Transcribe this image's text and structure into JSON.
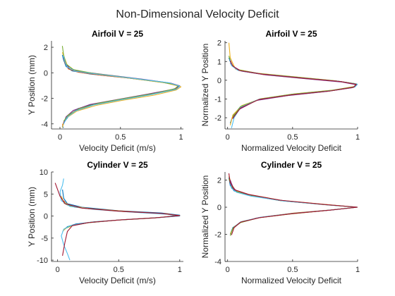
{
  "figure": {
    "suptitle": "Non-Dimensional Velocity Deficit"
  },
  "colors": [
    "#0072BD",
    "#D95319",
    "#EDB120",
    "#7E2F8E",
    "#77AC30",
    "#4DBEEE",
    "#A2142F"
  ],
  "chart_data": [
    {
      "type": "line",
      "title": "Airfoil V = 25",
      "xlabel": "Velocity Deficit (m/s)",
      "ylabel": "Y Position (mm)",
      "xlim": [
        -0.07,
        1.02
      ],
      "ylim": [
        -4.4,
        2.5
      ],
      "xticks": [
        0,
        0.5,
        1
      ],
      "xtick_labels": [
        "0",
        "0.5",
        "1"
      ],
      "yticks": [
        -4,
        -2,
        0,
        2
      ],
      "ytick_labels": [
        "-4",
        "-2",
        "0",
        "2"
      ],
      "series": [
        {
          "color": "#0072BD",
          "x": [
            0.02,
            0.03,
            0.05,
            0.1,
            0.25,
            0.55,
            0.85,
            0.98,
            0.97,
            0.8,
            0.55,
            0.3,
            0.15,
            0.08,
            0.04,
            0.02,
            0.03
          ],
          "y": [
            1.4,
            1.0,
            0.5,
            0.15,
            -0.1,
            -0.4,
            -0.75,
            -1.0,
            -1.2,
            -1.6,
            -2.0,
            -2.4,
            -2.8,
            -3.3,
            -3.8,
            -4.2,
            -4.3
          ]
        },
        {
          "color": "#D95319",
          "x": [
            0.03,
            0.04,
            0.07,
            0.15,
            0.35,
            0.65,
            0.9,
            0.99,
            0.95,
            0.75,
            0.5,
            0.28,
            0.12,
            0.05,
            0.02
          ],
          "y": [
            1.2,
            0.8,
            0.3,
            0.05,
            -0.2,
            -0.5,
            -0.8,
            -1.05,
            -1.3,
            -1.7,
            -2.1,
            -2.5,
            -3.0,
            -3.5,
            -4.1
          ]
        },
        {
          "color": "#EDB120",
          "x": [
            0.02,
            0.04,
            0.06,
            0.12,
            0.3,
            0.6,
            0.88,
            1.0,
            0.96,
            0.78,
            0.52,
            0.3,
            0.14,
            0.06,
            0.03,
            0.02
          ],
          "y": [
            1.6,
            1.1,
            0.6,
            0.2,
            -0.1,
            -0.45,
            -0.8,
            -1.1,
            -1.35,
            -1.75,
            -2.15,
            -2.55,
            -3.0,
            -3.5,
            -3.9,
            -4.3
          ]
        },
        {
          "color": "#7E2F8E",
          "x": [
            0.04,
            0.05,
            0.08,
            0.16,
            0.38,
            0.68,
            0.92,
            0.99,
            0.94,
            0.72,
            0.48,
            0.25,
            0.11,
            0.05,
            0.03
          ],
          "y": [
            1.0,
            0.7,
            0.35,
            0.1,
            -0.15,
            -0.5,
            -0.82,
            -1.02,
            -1.28,
            -1.68,
            -2.08,
            -2.48,
            -2.95,
            -3.45,
            -3.95
          ]
        },
        {
          "color": "#77AC30",
          "x": [
            0.02,
            0.03,
            0.05,
            0.11,
            0.28,
            0.58,
            0.86,
            0.98,
            0.95,
            0.78,
            0.54,
            0.32,
            0.16,
            0.07,
            0.03
          ],
          "y": [
            2.1,
            1.4,
            0.7,
            0.25,
            -0.05,
            -0.4,
            -0.75,
            -1.0,
            -1.25,
            -1.62,
            -2.0,
            -2.38,
            -2.8,
            -3.3,
            -3.8
          ]
        },
        {
          "color": "#4DBEEE",
          "x": [
            0.03,
            0.04,
            0.06,
            0.13,
            0.32,
            0.62,
            0.9,
            0.99,
            0.96,
            0.76,
            0.5,
            0.28,
            0.13,
            0.06,
            0.03
          ],
          "y": [
            1.3,
            0.9,
            0.45,
            0.12,
            -0.12,
            -0.45,
            -0.78,
            -1.05,
            -1.3,
            -1.7,
            -2.12,
            -2.52,
            -2.98,
            -3.48,
            -4.0
          ]
        }
      ]
    },
    {
      "type": "line",
      "title": "Airfoil V = 25",
      "xlabel": "Normalized Velocity Deficit",
      "ylabel": "Normalized Y Position",
      "xlim": [
        -0.02,
        1.0
      ],
      "ylim": [
        -2.6,
        2.1
      ],
      "xticks": [
        0,
        0.5,
        1
      ],
      "xtick_labels": [
        "0",
        "0.5",
        "1"
      ],
      "yticks": [
        -2,
        -1,
        0,
        1,
        2
      ],
      "ytick_labels": [
        "-2",
        "-1",
        "0",
        "1",
        "2"
      ],
      "series": [
        {
          "color": "#0072BD",
          "x": [
            0.01,
            0.03,
            0.08,
            0.25,
            0.55,
            0.85,
            0.99,
            0.98,
            0.8,
            0.5,
            0.25,
            0.1,
            0.04,
            0.02
          ],
          "y": [
            1.2,
            0.8,
            0.55,
            0.35,
            0.15,
            -0.05,
            -0.2,
            -0.35,
            -0.55,
            -0.75,
            -1.0,
            -1.4,
            -1.9,
            -2.3
          ]
        },
        {
          "color": "#D95319",
          "x": [
            0.02,
            0.04,
            0.1,
            0.28,
            0.58,
            0.88,
            1.0,
            0.97,
            0.78,
            0.48,
            0.23,
            0.09,
            0.03
          ],
          "y": [
            1.0,
            0.75,
            0.5,
            0.3,
            0.1,
            -0.08,
            -0.22,
            -0.38,
            -0.58,
            -0.8,
            -1.05,
            -1.5,
            -2.1
          ]
        },
        {
          "color": "#EDB120",
          "x": [
            0.01,
            0.02,
            0.06,
            0.22,
            0.52,
            0.82,
            0.98,
            0.98,
            0.82,
            0.52,
            0.26,
            0.11,
            0.04,
            0.02
          ],
          "y": [
            2.0,
            1.2,
            0.6,
            0.38,
            0.18,
            -0.02,
            -0.18,
            -0.33,
            -0.52,
            -0.72,
            -0.98,
            -1.35,
            -1.85,
            -2.4
          ]
        },
        {
          "color": "#7E2F8E",
          "x": [
            0.02,
            0.05,
            0.11,
            0.3,
            0.6,
            0.88,
            0.99,
            0.96,
            0.76,
            0.46,
            0.22,
            0.09,
            0.04
          ],
          "y": [
            0.9,
            0.7,
            0.48,
            0.28,
            0.08,
            -0.1,
            -0.24,
            -0.4,
            -0.6,
            -0.82,
            -1.08,
            -1.55,
            -2.05
          ]
        },
        {
          "color": "#77AC30",
          "x": [
            0.01,
            0.03,
            0.07,
            0.24,
            0.54,
            0.84,
            0.99,
            0.98,
            0.8,
            0.5,
            0.25,
            0.1,
            0.04
          ],
          "y": [
            1.3,
            0.85,
            0.57,
            0.36,
            0.16,
            -0.04,
            -0.19,
            -0.34,
            -0.54,
            -0.74,
            -1.0,
            -1.4,
            -1.95
          ]
        },
        {
          "color": "#4DBEEE",
          "x": [
            0.02,
            0.03,
            0.08,
            0.26,
            0.56,
            0.86,
            1.0,
            0.98,
            0.8,
            0.5,
            0.24,
            0.1,
            0.05,
            0.03
          ],
          "y": [
            1.1,
            0.78,
            0.53,
            0.33,
            0.13,
            -0.06,
            -0.21,
            -0.36,
            -0.56,
            -0.77,
            -1.02,
            -1.45,
            -2.0,
            -2.55
          ]
        },
        {
          "color": "#A2142F",
          "x": [
            0.02,
            0.04,
            0.09,
            0.27,
            0.57,
            0.87,
            0.99,
            0.97,
            0.79,
            0.49,
            0.24,
            0.1,
            0.04
          ],
          "y": [
            1.05,
            0.76,
            0.52,
            0.32,
            0.12,
            -0.07,
            -0.22,
            -0.37,
            -0.57,
            -0.78,
            -1.03,
            -1.48,
            -2.02
          ]
        }
      ]
    },
    {
      "type": "line",
      "title": "Cylinder V = 25",
      "xlabel": "Velocity Deficit (m/s)",
      "ylabel": "Y Position (mm)",
      "xlim": [
        -0.05,
        1.03
      ],
      "ylim": [
        -10.3,
        10.0
      ],
      "xticks": [
        0,
        0.5,
        1
      ],
      "xtick_labels": [
        "0",
        "0.5",
        "1"
      ],
      "yticks": [
        -10,
        -5,
        0,
        5,
        10
      ],
      "ytick_labels": [
        "-10",
        "-5",
        "0",
        "5",
        "10"
      ],
      "series": [
        {
          "color": "#0072BD",
          "x": [
            0.04,
            0.05,
            0.08,
            0.2,
            0.5,
            0.85,
            1.0,
            0.85,
            0.55,
            0.3,
            0.15,
            0.08,
            0.05
          ],
          "y": [
            6.0,
            4.0,
            2.8,
            2.0,
            1.2,
            0.7,
            0.2,
            -0.3,
            -0.8,
            -1.3,
            -1.8,
            -2.4,
            -3.2
          ]
        },
        {
          "color": "#D95319",
          "x": [
            0.05,
            0.07,
            0.12,
            0.3,
            0.6,
            0.9,
            0.99,
            0.8,
            0.5,
            0.25,
            0.12,
            0.06
          ],
          "y": [
            3.5,
            2.8,
            2.2,
            1.6,
            1.0,
            0.5,
            0.0,
            -0.4,
            -0.9,
            -1.5,
            -2.1,
            -2.8
          ]
        },
        {
          "color": "#EDB120",
          "x": [
            0.03,
            0.05,
            0.1,
            0.25,
            0.55,
            0.88,
            1.0,
            0.82,
            0.52,
            0.28,
            0.14,
            0.07,
            0.04
          ],
          "y": [
            4.5,
            3.2,
            2.4,
            1.7,
            1.0,
            0.5,
            0.1,
            -0.35,
            -0.85,
            -1.4,
            -2.0,
            -2.7,
            -3.5
          ]
        },
        {
          "color": "#77AC30",
          "x": [
            0.05,
            0.08,
            0.14,
            0.32,
            0.62,
            0.9,
            0.98,
            0.78,
            0.48,
            0.24,
            0.11,
            0.05
          ],
          "y": [
            3.0,
            2.5,
            2.0,
            1.5,
            0.9,
            0.45,
            0.0,
            -0.45,
            -0.95,
            -1.55,
            -2.2,
            -3.0
          ]
        },
        {
          "color": "#4DBEEE",
          "x": [
            0.05,
            0.04,
            0.02,
            0.03,
            0.1,
            0.3,
            0.6,
            0.9,
            1.0,
            0.8,
            0.5,
            0.25,
            0.1,
            0.05,
            0.03,
            0.05,
            0.08,
            0.1
          ],
          "y": [
            8.5,
            7.0,
            5.5,
            3.5,
            2.2,
            1.5,
            0.9,
            0.4,
            0.0,
            -0.4,
            -0.9,
            -1.5,
            -2.2,
            -3.0,
            -4.5,
            -6.5,
            -8.5,
            -10.0
          ]
        },
        {
          "color": "#A2142F",
          "x": [
            -0.02,
            0.02,
            0.06,
            0.2,
            0.5,
            0.85,
            1.0,
            0.8,
            0.5,
            0.25,
            0.12,
            0.08,
            0.06,
            0.04
          ],
          "y": [
            7.5,
            4.5,
            2.8,
            1.8,
            1.1,
            0.6,
            0.1,
            -0.4,
            -0.9,
            -1.5,
            -2.2,
            -3.5,
            -6.0,
            -9.0
          ]
        }
      ]
    },
    {
      "type": "line",
      "title": "Cylinder V = 25",
      "xlabel": "Normalized Velocity Deficit",
      "ylabel": "Normalized Y Position",
      "xlim": [
        -0.02,
        1.0
      ],
      "ylim": [
        -4.0,
        2.6
      ],
      "xticks": [
        0,
        0.5,
        1
      ],
      "xtick_labels": [
        "0",
        "0.5",
        "1"
      ],
      "yticks": [
        -4,
        -2,
        0,
        2
      ],
      "ytick_labels": [
        "-4",
        "-2",
        "0",
        "2"
      ],
      "series": [
        {
          "color": "#0072BD",
          "x": [
            0.01,
            0.02,
            0.05,
            0.15,
            0.4,
            0.75,
            1.0,
            0.8,
            0.5,
            0.25,
            0.1,
            0.04,
            0.02
          ],
          "y": [
            2.2,
            1.6,
            1.2,
            0.9,
            0.5,
            0.2,
            0.0,
            -0.2,
            -0.45,
            -0.75,
            -1.1,
            -1.5,
            -2.0
          ]
        },
        {
          "color": "#D95319",
          "x": [
            0.02,
            0.04,
            0.08,
            0.2,
            0.45,
            0.8,
            0.99,
            0.78,
            0.48,
            0.22,
            0.09,
            0.04
          ],
          "y": [
            1.9,
            1.45,
            1.1,
            0.8,
            0.45,
            0.15,
            0.0,
            -0.22,
            -0.5,
            -0.8,
            -1.15,
            -1.6
          ]
        },
        {
          "color": "#EDB120",
          "x": [
            0.01,
            0.03,
            0.06,
            0.17,
            0.42,
            0.78,
            1.0,
            0.82,
            0.52,
            0.27,
            0.11,
            0.05,
            0.02
          ],
          "y": [
            2.3,
            1.7,
            1.25,
            0.92,
            0.5,
            0.18,
            0.0,
            -0.18,
            -0.42,
            -0.72,
            -1.05,
            -1.45,
            -1.95
          ]
        },
        {
          "color": "#7E2F8E",
          "x": [
            0.02,
            0.04,
            0.07,
            0.19,
            0.44,
            0.79,
            0.99,
            0.8,
            0.5,
            0.24,
            0.1,
            0.04
          ],
          "y": [
            2.0,
            1.5,
            1.15,
            0.85,
            0.47,
            0.16,
            0.0,
            -0.2,
            -0.47,
            -0.77,
            -1.12,
            -1.55
          ]
        },
        {
          "color": "#77AC30",
          "x": [
            0.01,
            0.03,
            0.06,
            0.16,
            0.41,
            0.77,
            0.99,
            0.79,
            0.49,
            0.24,
            0.1,
            0.04,
            0.02
          ],
          "y": [
            2.1,
            1.55,
            1.18,
            0.88,
            0.48,
            0.17,
            0.0,
            -0.21,
            -0.48,
            -0.78,
            -1.13,
            -1.55,
            -2.1
          ]
        },
        {
          "color": "#4DBEEE",
          "x": [
            0.02,
            0.03,
            0.07,
            0.18,
            0.43,
            0.78,
            1.0,
            0.81,
            0.51,
            0.25,
            0.1,
            0.05
          ],
          "y": [
            1.8,
            1.4,
            1.1,
            0.82,
            0.46,
            0.16,
            0.0,
            -0.19,
            -0.44,
            -0.74,
            -1.08,
            -1.5
          ]
        },
        {
          "color": "#A2142F",
          "x": [
            0.01,
            0.02,
            0.05,
            0.16,
            0.4,
            0.76,
            1.0,
            0.8,
            0.5,
            0.25,
            0.1,
            0.05,
            0.03
          ],
          "y": [
            2.5,
            1.8,
            1.3,
            0.95,
            0.52,
            0.19,
            0.0,
            -0.2,
            -0.46,
            -0.76,
            -1.1,
            -1.5,
            -2.05
          ]
        }
      ]
    }
  ]
}
